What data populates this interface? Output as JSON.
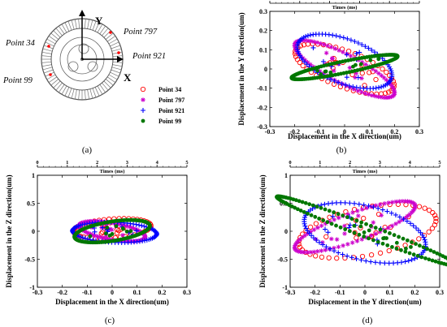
{
  "diagram": {
    "y_axis_label": "Y",
    "x_axis_label": "X",
    "points": [
      {
        "label": "Point 34",
        "name": "point-34-label"
      },
      {
        "label": "Point 797",
        "name": "point-797-label"
      },
      {
        "label": "Point 921",
        "name": "point-921-label"
      },
      {
        "label": "Point 99",
        "name": "point-99-label"
      }
    ]
  },
  "legend": [
    {
      "label": "Point 34",
      "marker": "o",
      "color": "#ff0000"
    },
    {
      "label": "Point 797",
      "marker": "*",
      "color": "#cc00cc"
    },
    {
      "label": "Point 921",
      "marker": "+",
      "color": "#0000ff"
    },
    {
      "label": "Point 99",
      "marker": ".",
      "color": "#007700"
    }
  ],
  "captions": [
    "(a)",
    "(b)",
    "(c)",
    "(d)"
  ],
  "chart_data": [
    {
      "type": "scatter",
      "panel": "b",
      "xlabel": "Displacement in the X direction(um)",
      "ylabel": "Displacement in the Y direction(um)",
      "top_axis_label": "Times (ms)",
      "xlim": [
        -0.3,
        0.3
      ],
      "ylim": [
        -0.3,
        0.3
      ],
      "xticks": [
        "-0.3",
        "-0.2",
        "-0.1",
        "0",
        "0.1",
        "0.2",
        "0.3"
      ],
      "yticks": [
        "-0.3",
        "-0.2",
        "-0.1",
        "0",
        "0.1",
        "0.2",
        "0.3"
      ],
      "top_ticks": [
        "0",
        "1",
        "2",
        "3",
        "4",
        "5"
      ],
      "series": [
        {
          "name": "Point 34",
          "ellipse": {
            "cx": 0.0,
            "cy": 0.0,
            "a": 0.22,
            "b": 0.09,
            "angle_deg": -28
          }
        },
        {
          "name": "Point 797",
          "ellipse": {
            "cx": 0.0,
            "cy": 0.0,
            "a": 0.24,
            "b": 0.07,
            "angle_deg": -35
          }
        },
        {
          "name": "Point 921",
          "ellipse": {
            "cx": 0.0,
            "cy": 0.04,
            "a": 0.21,
            "b": 0.11,
            "angle_deg": -30
          }
        },
        {
          "name": "Point 99",
          "ellipse": {
            "cx": 0.0,
            "cy": 0.01,
            "a": 0.22,
            "b": 0.03,
            "angle_deg": 15
          }
        }
      ]
    },
    {
      "type": "scatter",
      "panel": "c",
      "xlabel": "Displacement in the X direction(um)",
      "ylabel": "Displacement in the Z direction(um)",
      "top_axis_label": "Times (ms)",
      "xlim": [
        -0.3,
        0.3
      ],
      "ylim": [
        -1,
        1
      ],
      "xticks": [
        "-0.3",
        "-0.2",
        "-0.1",
        "0",
        "0.1",
        "0.2",
        "0.3"
      ],
      "yticks": [
        "-1",
        "-0.5",
        "0",
        "0.5",
        "1"
      ],
      "top_ticks": [
        "0",
        "1",
        "2",
        "3",
        "4",
        "5"
      ],
      "series": [
        {
          "name": "Point 34",
          "ellipse": {
            "cx": 0.0,
            "cy": 0.05,
            "a": 0.19,
            "b": 0.14,
            "angle_deg": 58
          }
        },
        {
          "name": "Point 797",
          "ellipse": {
            "cx": 0.0,
            "cy": 0.0,
            "a": 0.2,
            "b": 0.1,
            "angle_deg": -60
          }
        },
        {
          "name": "Point 921",
          "ellipse": {
            "cx": 0.01,
            "cy": -0.02,
            "a": 0.19,
            "b": 0.16,
            "angle_deg": -58
          }
        },
        {
          "name": "Point 99",
          "ellipse": {
            "cx": 0.0,
            "cy": 0.0,
            "a": 0.22,
            "b": 0.12,
            "angle_deg": 60
          }
        }
      ]
    },
    {
      "type": "scatter",
      "panel": "d",
      "xlabel": "Displacement in the Y direction(um)",
      "ylabel": "Displacement in the Z direction(um)",
      "top_axis_label": "Times (ms)",
      "xlim": [
        -0.3,
        0.3
      ],
      "ylim": [
        -1,
        1
      ],
      "xticks": [
        "-0.3",
        "-0.2",
        "-0.1",
        "0",
        "0.1",
        "0.2",
        "0.3"
      ],
      "yticks": [
        "-1",
        "-0.5",
        "0",
        "0.5",
        "1"
      ],
      "top_ticks": [
        "0",
        "1",
        "2",
        "3",
        "4",
        "5"
      ],
      "series": [
        {
          "name": "Point 34",
          "ellipse": {
            "cx": 0.01,
            "cy": 0.0,
            "a": 0.24,
            "b": 0.5,
            "angle_deg": -18
          }
        },
        {
          "name": "Point 797",
          "ellipse": {
            "cx": -0.04,
            "cy": 0.08,
            "a": 0.13,
            "b": 0.5,
            "angle_deg": -25
          }
        },
        {
          "name": "Point 921",
          "ellipse": {
            "cx": 0.0,
            "cy": -0.03,
            "a": 0.22,
            "b": 0.55,
            "angle_deg": 12
          }
        },
        {
          "name": "Point 99",
          "ellipse": {
            "cx": 0.01,
            "cy": 0.0,
            "a": 0.06,
            "b": 0.72,
            "angle_deg": 30
          }
        }
      ]
    }
  ]
}
